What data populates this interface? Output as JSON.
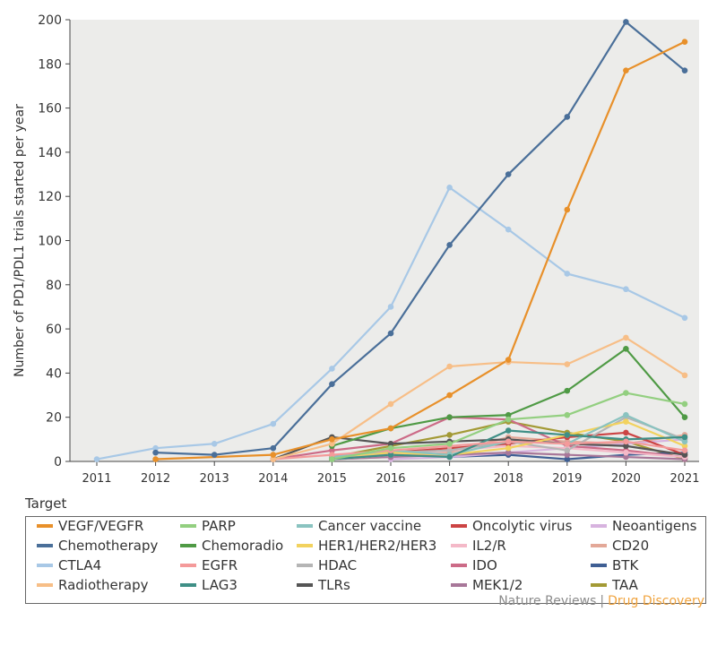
{
  "chart_data": {
    "type": "line",
    "title": "",
    "xlabel": "",
    "ylabel": "Number of PD1/PDL1 trials started per year",
    "x": [
      2011,
      2012,
      2013,
      2014,
      2015,
      2016,
      2017,
      2018,
      2019,
      2020,
      2021
    ],
    "xlim": [
      2011,
      2021
    ],
    "ylim": [
      0,
      200
    ],
    "yticks": [
      0,
      20,
      40,
      60,
      80,
      100,
      120,
      140,
      160,
      180,
      200
    ],
    "grid": false,
    "background": "#ececea",
    "legend_title": "Target",
    "legend_placement": "bottom",
    "series": [
      {
        "name": "VEGF/VEGFR",
        "color": "#e8902a",
        "values": [
          null,
          1,
          null,
          3,
          10,
          15,
          30,
          46,
          114,
          177,
          190
        ]
      },
      {
        "name": "Chemotherapy",
        "color": "#4a6f99",
        "values": [
          null,
          4,
          3,
          6,
          35,
          58,
          98,
          130,
          156,
          199,
          177
        ]
      },
      {
        "name": "CTLA4",
        "color": "#a8c8e6",
        "values": [
          1,
          6,
          8,
          17,
          42,
          70,
          124,
          105,
          85,
          78,
          65
        ]
      },
      {
        "name": "Radiotherapy",
        "color": "#f7be87",
        "values": [
          null,
          null,
          null,
          1,
          8,
          26,
          43,
          45,
          44,
          56,
          39
        ]
      },
      {
        "name": "PARP",
        "color": "#93cf80",
        "values": [
          null,
          null,
          null,
          null,
          1,
          6,
          8,
          19,
          21,
          31,
          26
        ]
      },
      {
        "name": "Chemoradio",
        "color": "#4f9a45",
        "values": [
          null,
          null,
          null,
          null,
          7,
          15,
          20,
          21,
          32,
          51,
          20
        ]
      },
      {
        "name": "EGFR",
        "color": "#f49a9a",
        "values": [
          null,
          null,
          null,
          1,
          3,
          5,
          7,
          9,
          8,
          9,
          5
        ]
      },
      {
        "name": "LAG3",
        "color": "#3f8f86",
        "values": [
          null,
          null,
          null,
          null,
          1,
          3,
          2,
          14,
          12,
          10,
          11
        ]
      },
      {
        "name": "Cancer vaccine",
        "color": "#8ac3c0",
        "values": [
          null,
          null,
          null,
          null,
          2,
          5,
          3,
          9,
          8,
          21,
          9
        ]
      },
      {
        "name": "HER1/HER2/HER3",
        "color": "#f2d25e",
        "values": [
          null,
          null,
          null,
          null,
          2,
          4,
          3,
          6,
          12,
          18,
          7
        ]
      },
      {
        "name": "HDAC",
        "color": "#b5b5b5",
        "values": [
          null,
          null,
          null,
          null,
          2,
          4,
          5,
          9,
          5,
          20,
          10
        ]
      },
      {
        "name": "TLRs",
        "color": "#555555",
        "values": [
          null,
          null,
          null,
          1,
          11,
          8,
          9,
          10,
          8,
          7,
          3
        ]
      },
      {
        "name": "Oncolytic virus",
        "color": "#cc4444",
        "values": [
          null,
          null,
          null,
          null,
          2,
          4,
          6,
          8,
          11,
          13,
          3
        ]
      },
      {
        "name": "IL2/R",
        "color": "#f4b9c8",
        "values": [
          null,
          null,
          null,
          null,
          1,
          3,
          5,
          7,
          6,
          4,
          2
        ]
      },
      {
        "name": "IDO",
        "color": "#cc6b87",
        "values": [
          null,
          null,
          null,
          1,
          5,
          8,
          20,
          19,
          7,
          5,
          2
        ]
      },
      {
        "name": "MEK1/2",
        "color": "#a87799",
        "values": [
          null,
          null,
          null,
          null,
          1,
          2,
          3,
          4,
          3,
          2,
          1
        ]
      },
      {
        "name": "Neoantigens",
        "color": "#d7b3df",
        "values": [
          null,
          null,
          null,
          null,
          null,
          1,
          2,
          4,
          6,
          8,
          10
        ]
      },
      {
        "name": "CD20",
        "color": "#e3a898",
        "values": [
          null,
          null,
          null,
          null,
          1,
          2,
          4,
          11,
          9,
          8,
          12
        ]
      },
      {
        "name": "BTK",
        "color": "#3f5f94",
        "values": [
          null,
          null,
          null,
          null,
          1,
          3,
          2,
          3,
          1,
          3,
          4
        ]
      },
      {
        "name": "TAA",
        "color": "#a39a35",
        "values": [
          null,
          null,
          null,
          null,
          2,
          7,
          12,
          18,
          13,
          9,
          1
        ]
      }
    ]
  },
  "credit": {
    "publisher": "Nature Reviews",
    "separator": "|",
    "journal": "Drug Discovery"
  }
}
